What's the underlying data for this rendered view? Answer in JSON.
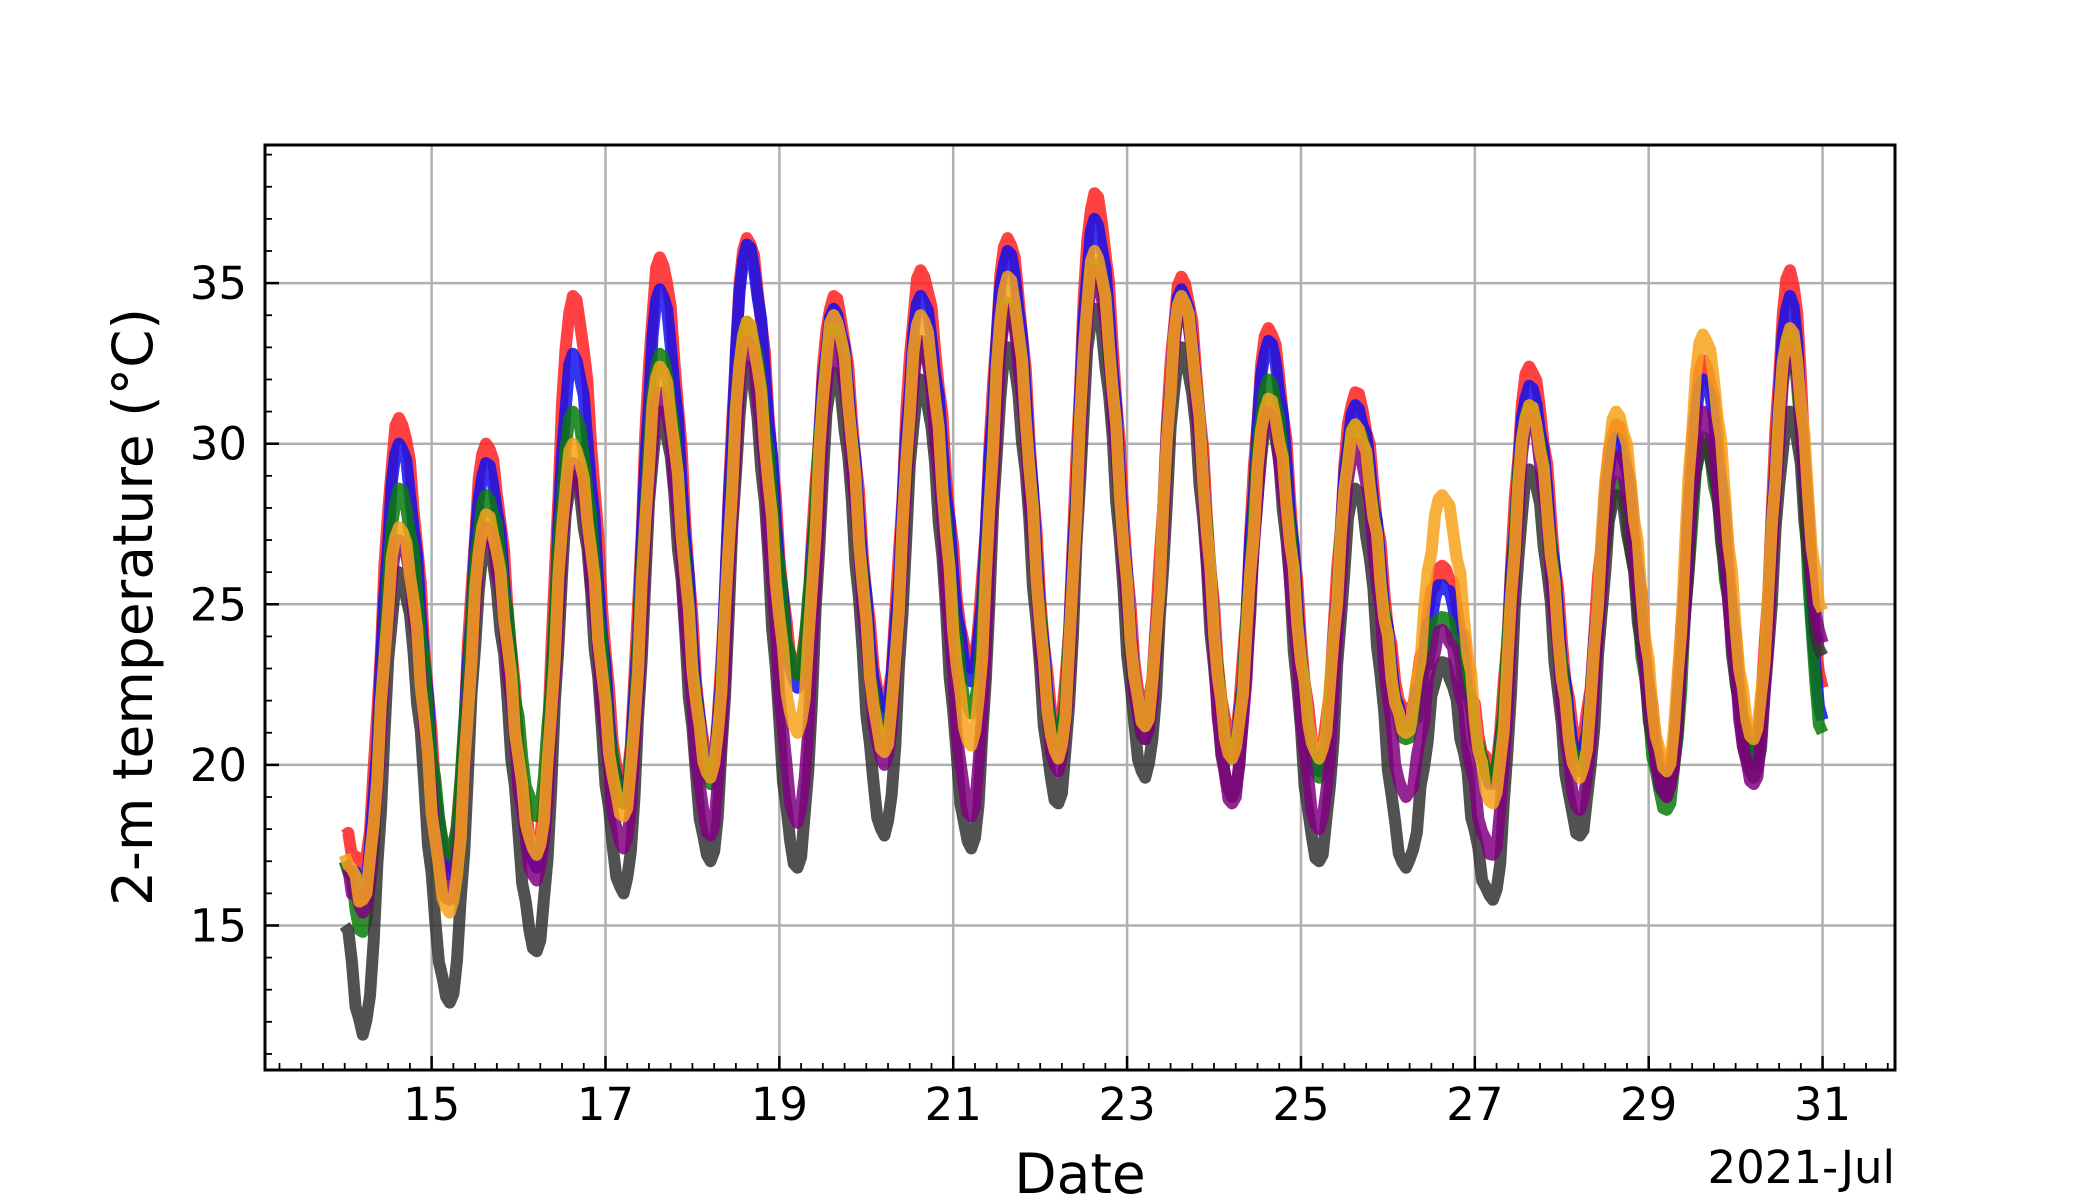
{
  "chart_data": {
    "type": "line",
    "title": "",
    "xlabel": "Date",
    "ylabel": "2-m temperature (°C)",
    "x_offset_label": "2021-Jul",
    "xlim": [
      "2021-07-13 02:00",
      "2021-07-31 20:00"
    ],
    "ylim": [
      10.5,
      39.3
    ],
    "x_ticks": [
      {
        "date": "2021-07-15",
        "label": "15"
      },
      {
        "date": "2021-07-17",
        "label": "17"
      },
      {
        "date": "2021-07-19",
        "label": "19"
      },
      {
        "date": "2021-07-21",
        "label": "21"
      },
      {
        "date": "2021-07-23",
        "label": "23"
      },
      {
        "date": "2021-07-25",
        "label": "25"
      },
      {
        "date": "2021-07-27",
        "label": "27"
      },
      {
        "date": "2021-07-29",
        "label": "29"
      },
      {
        "date": "2021-07-31",
        "label": "31"
      }
    ],
    "y_ticks": [
      15,
      20,
      25,
      30,
      35
    ],
    "grid": true,
    "legend": "none",
    "series": [
      {
        "color": "#ff2020",
        "values": [
          [
            "2021-07-14 00:00",
            17.8
          ],
          [
            "2021-07-14 05:00",
            16.8
          ],
          [
            "2021-07-14 15:00",
            30.8
          ],
          [
            "2021-07-15 05:00",
            16.8
          ],
          [
            "2021-07-15 15:00",
            30.0
          ],
          [
            "2021-07-16 05:00",
            17.2
          ],
          [
            "2021-07-16 15:00",
            34.6
          ],
          [
            "2021-07-17 05:00",
            19.2
          ],
          [
            "2021-07-17 15:00",
            35.8
          ],
          [
            "2021-07-18 05:00",
            19.8
          ],
          [
            "2021-07-18 15:00",
            36.4
          ],
          [
            "2021-07-19 05:00",
            22.8
          ],
          [
            "2021-07-19 15:00",
            34.6
          ],
          [
            "2021-07-20 05:00",
            21.8
          ],
          [
            "2021-07-20 15:00",
            35.4
          ],
          [
            "2021-07-21 05:00",
            23.0
          ],
          [
            "2021-07-21 15:00",
            36.4
          ],
          [
            "2021-07-22 05:00",
            21.0
          ],
          [
            "2021-07-22 15:00",
            37.8
          ],
          [
            "2021-07-23 05:00",
            21.6
          ],
          [
            "2021-07-23 15:00",
            35.2
          ],
          [
            "2021-07-24 05:00",
            20.6
          ],
          [
            "2021-07-24 15:00",
            33.6
          ],
          [
            "2021-07-25 05:00",
            20.2
          ],
          [
            "2021-07-25 15:00",
            31.6
          ],
          [
            "2021-07-26 05:00",
            21.6
          ],
          [
            "2021-07-26 15:00",
            26.2
          ],
          [
            "2021-07-27 05:00",
            19.8
          ],
          [
            "2021-07-27 15:00",
            32.4
          ],
          [
            "2021-07-28 05:00",
            20.6
          ],
          [
            "2021-07-28 15:00",
            30.6
          ],
          [
            "2021-07-29 05:00",
            19.6
          ],
          [
            "2021-07-29 15:00",
            32.6
          ],
          [
            "2021-07-30 05:00",
            20.4
          ],
          [
            "2021-07-30 15:00",
            35.4
          ],
          [
            "2021-07-31 00:00",
            22.4
          ]
        ]
      },
      {
        "color": "#1010ee",
        "values": [
          [
            "2021-07-14 00:00",
            17.0
          ],
          [
            "2021-07-14 05:00",
            16.0
          ],
          [
            "2021-07-14 15:00",
            30.0
          ],
          [
            "2021-07-15 05:00",
            16.6
          ],
          [
            "2021-07-15 15:00",
            29.4
          ],
          [
            "2021-07-16 05:00",
            16.8
          ],
          [
            "2021-07-16 15:00",
            32.8
          ],
          [
            "2021-07-17 05:00",
            18.8
          ],
          [
            "2021-07-17 15:00",
            34.8
          ],
          [
            "2021-07-18 05:00",
            19.6
          ],
          [
            "2021-07-18 15:00",
            36.2
          ],
          [
            "2021-07-19 05:00",
            22.4
          ],
          [
            "2021-07-19 15:00",
            34.2
          ],
          [
            "2021-07-20 05:00",
            21.4
          ],
          [
            "2021-07-20 15:00",
            34.6
          ],
          [
            "2021-07-21 05:00",
            22.6
          ],
          [
            "2021-07-21 15:00",
            36.0
          ],
          [
            "2021-07-22 05:00",
            20.6
          ],
          [
            "2021-07-22 15:00",
            37.0
          ],
          [
            "2021-07-23 05:00",
            21.2
          ],
          [
            "2021-07-23 15:00",
            34.8
          ],
          [
            "2021-07-24 05:00",
            20.2
          ],
          [
            "2021-07-24 15:00",
            33.2
          ],
          [
            "2021-07-25 05:00",
            19.8
          ],
          [
            "2021-07-25 15:00",
            31.2
          ],
          [
            "2021-07-26 05:00",
            21.2
          ],
          [
            "2021-07-26 15:00",
            25.6
          ],
          [
            "2021-07-27 05:00",
            19.4
          ],
          [
            "2021-07-27 15:00",
            31.8
          ],
          [
            "2021-07-28 05:00",
            20.2
          ],
          [
            "2021-07-28 15:00",
            30.2
          ],
          [
            "2021-07-29 05:00",
            19.2
          ],
          [
            "2021-07-29 15:00",
            32.0
          ],
          [
            "2021-07-30 05:00",
            20.0
          ],
          [
            "2021-07-30 15:00",
            34.6
          ],
          [
            "2021-07-31 00:00",
            21.4
          ]
        ]
      },
      {
        "color": "#0a7a0a",
        "values": [
          [
            "2021-07-14 00:00",
            17.0
          ],
          [
            "2021-07-14 05:00",
            14.8
          ],
          [
            "2021-07-14 15:00",
            28.6
          ],
          [
            "2021-07-15 05:00",
            17.2
          ],
          [
            "2021-07-15 15:00",
            28.4
          ],
          [
            "2021-07-16 05:00",
            18.4
          ],
          [
            "2021-07-16 15:00",
            31.0
          ],
          [
            "2021-07-17 05:00",
            18.8
          ],
          [
            "2021-07-17 15:00",
            32.8
          ],
          [
            "2021-07-18 05:00",
            19.4
          ],
          [
            "2021-07-18 15:00",
            33.8
          ],
          [
            "2021-07-19 05:00",
            22.8
          ],
          [
            "2021-07-19 15:00",
            33.6
          ],
          [
            "2021-07-20 05:00",
            20.6
          ],
          [
            "2021-07-20 15:00",
            33.2
          ],
          [
            "2021-07-21 05:00",
            21.6
          ],
          [
            "2021-07-21 15:00",
            34.4
          ],
          [
            "2021-07-22 05:00",
            20.6
          ],
          [
            "2021-07-22 15:00",
            35.6
          ],
          [
            "2021-07-23 05:00",
            20.8
          ],
          [
            "2021-07-23 15:00",
            34.4
          ],
          [
            "2021-07-24 05:00",
            20.2
          ],
          [
            "2021-07-24 15:00",
            32.0
          ],
          [
            "2021-07-25 05:00",
            19.6
          ],
          [
            "2021-07-25 15:00",
            30.6
          ],
          [
            "2021-07-26 05:00",
            20.8
          ],
          [
            "2021-07-26 15:00",
            24.6
          ],
          [
            "2021-07-27 05:00",
            19.6
          ],
          [
            "2021-07-27 15:00",
            31.2
          ],
          [
            "2021-07-28 05:00",
            19.8
          ],
          [
            "2021-07-28 15:00",
            28.8
          ],
          [
            "2021-07-29 05:00",
            18.6
          ],
          [
            "2021-07-29 15:00",
            30.0
          ],
          [
            "2021-07-30 05:00",
            20.0
          ],
          [
            "2021-07-30 15:00",
            33.4
          ],
          [
            "2021-07-31 00:00",
            21.0
          ]
        ]
      },
      {
        "color": "#333333",
        "values": [
          [
            "2021-07-14 00:00",
            15.0
          ],
          [
            "2021-07-14 05:00",
            11.6
          ],
          [
            "2021-07-14 15:00",
            26.0
          ],
          [
            "2021-07-15 05:00",
            12.6
          ],
          [
            "2021-07-15 15:00",
            26.8
          ],
          [
            "2021-07-16 05:00",
            14.2
          ],
          [
            "2021-07-16 15:00",
            29.0
          ],
          [
            "2021-07-17 05:00",
            16.0
          ],
          [
            "2021-07-17 15:00",
            31.0
          ],
          [
            "2021-07-18 05:00",
            17.0
          ],
          [
            "2021-07-18 15:00",
            32.4
          ],
          [
            "2021-07-19 05:00",
            16.8
          ],
          [
            "2021-07-19 15:00",
            32.2
          ],
          [
            "2021-07-20 05:00",
            17.8
          ],
          [
            "2021-07-20 15:00",
            32.0
          ],
          [
            "2021-07-21 05:00",
            17.4
          ],
          [
            "2021-07-21 15:00",
            33.0
          ],
          [
            "2021-07-22 05:00",
            18.8
          ],
          [
            "2021-07-22 15:00",
            34.2
          ],
          [
            "2021-07-23 05:00",
            19.6
          ],
          [
            "2021-07-23 15:00",
            33.0
          ],
          [
            "2021-07-24 05:00",
            19.0
          ],
          [
            "2021-07-24 15:00",
            30.8
          ],
          [
            "2021-07-25 05:00",
            17.0
          ],
          [
            "2021-07-25 15:00",
            28.6
          ],
          [
            "2021-07-26 05:00",
            16.8
          ],
          [
            "2021-07-26 15:00",
            23.2
          ],
          [
            "2021-07-27 05:00",
            15.8
          ],
          [
            "2021-07-27 15:00",
            29.2
          ],
          [
            "2021-07-28 05:00",
            17.8
          ],
          [
            "2021-07-28 15:00",
            28.4
          ],
          [
            "2021-07-29 05:00",
            19.0
          ],
          [
            "2021-07-29 15:00",
            30.2
          ],
          [
            "2021-07-30 05:00",
            19.6
          ],
          [
            "2021-07-30 15:00",
            31.0
          ],
          [
            "2021-07-31 00:00",
            23.4
          ]
        ]
      },
      {
        "color": "#800080",
        "values": [
          [
            "2021-07-14 00:00",
            16.8
          ],
          [
            "2021-07-14 05:00",
            15.4
          ],
          [
            "2021-07-14 15:00",
            27.0
          ],
          [
            "2021-07-15 05:00",
            15.8
          ],
          [
            "2021-07-15 15:00",
            27.4
          ],
          [
            "2021-07-16 05:00",
            16.4
          ],
          [
            "2021-07-16 15:00",
            29.4
          ],
          [
            "2021-07-17 05:00",
            17.4
          ],
          [
            "2021-07-17 15:00",
            31.6
          ],
          [
            "2021-07-18 05:00",
            17.8
          ],
          [
            "2021-07-18 15:00",
            33.2
          ],
          [
            "2021-07-19 05:00",
            18.2
          ],
          [
            "2021-07-19 15:00",
            33.2
          ],
          [
            "2021-07-20 05:00",
            20.0
          ],
          [
            "2021-07-20 15:00",
            33.2
          ],
          [
            "2021-07-21 05:00",
            18.4
          ],
          [
            "2021-07-21 15:00",
            34.2
          ],
          [
            "2021-07-22 05:00",
            19.8
          ],
          [
            "2021-07-22 15:00",
            35.4
          ],
          [
            "2021-07-23 05:00",
            20.8
          ],
          [
            "2021-07-23 15:00",
            34.4
          ],
          [
            "2021-07-24 05:00",
            18.8
          ],
          [
            "2021-07-24 15:00",
            31.0
          ],
          [
            "2021-07-25 05:00",
            18.0
          ],
          [
            "2021-07-25 15:00",
            30.0
          ],
          [
            "2021-07-26 05:00",
            19.0
          ],
          [
            "2021-07-26 15:00",
            24.2
          ],
          [
            "2021-07-27 05:00",
            17.2
          ],
          [
            "2021-07-27 15:00",
            30.8
          ],
          [
            "2021-07-28 05:00",
            18.6
          ],
          [
            "2021-07-28 15:00",
            29.6
          ],
          [
            "2021-07-29 05:00",
            19.0
          ],
          [
            "2021-07-29 15:00",
            31.0
          ],
          [
            "2021-07-30 05:00",
            19.4
          ],
          [
            "2021-07-30 15:00",
            33.0
          ],
          [
            "2021-07-31 00:00",
            23.8
          ]
        ]
      },
      {
        "color": "#f7a21b",
        "values": [
          [
            "2021-07-14 00:00",
            17.2
          ],
          [
            "2021-07-14 05:00",
            15.8
          ],
          [
            "2021-07-14 15:00",
            27.4
          ],
          [
            "2021-07-15 05:00",
            15.4
          ],
          [
            "2021-07-15 15:00",
            27.8
          ],
          [
            "2021-07-16 05:00",
            17.2
          ],
          [
            "2021-07-16 15:00",
            30.0
          ],
          [
            "2021-07-17 05:00",
            18.4
          ],
          [
            "2021-07-17 15:00",
            32.4
          ],
          [
            "2021-07-18 05:00",
            19.6
          ],
          [
            "2021-07-18 15:00",
            33.8
          ],
          [
            "2021-07-19 05:00",
            21.0
          ],
          [
            "2021-07-19 15:00",
            34.0
          ],
          [
            "2021-07-20 05:00",
            20.4
          ],
          [
            "2021-07-20 15:00",
            34.0
          ],
          [
            "2021-07-21 05:00",
            20.6
          ],
          [
            "2021-07-21 15:00",
            35.2
          ],
          [
            "2021-07-22 05:00",
            20.2
          ],
          [
            "2021-07-22 15:00",
            36.0
          ],
          [
            "2021-07-23 05:00",
            21.2
          ],
          [
            "2021-07-23 15:00",
            34.6
          ],
          [
            "2021-07-24 05:00",
            20.2
          ],
          [
            "2021-07-24 15:00",
            31.4
          ],
          [
            "2021-07-25 05:00",
            20.2
          ],
          [
            "2021-07-25 15:00",
            30.6
          ],
          [
            "2021-07-26 05:00",
            21.0
          ],
          [
            "2021-07-26 15:00",
            28.4
          ],
          [
            "2021-07-27 05:00",
            18.8
          ],
          [
            "2021-07-27 15:00",
            31.2
          ],
          [
            "2021-07-28 05:00",
            19.6
          ],
          [
            "2021-07-28 15:00",
            31.0
          ],
          [
            "2021-07-29 05:00",
            19.8
          ],
          [
            "2021-07-29 15:00",
            33.4
          ],
          [
            "2021-07-30 05:00",
            20.8
          ],
          [
            "2021-07-30 15:00",
            33.6
          ],
          [
            "2021-07-31 00:00",
            24.8
          ]
        ]
      }
    ]
  }
}
